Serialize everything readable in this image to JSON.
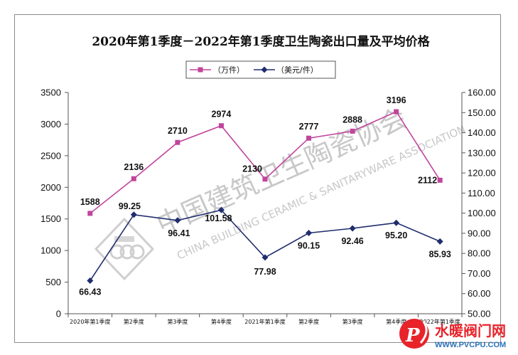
{
  "chart_data": {
    "type": "line",
    "title": "2020年第1季度－2022年第1季度卫生陶瓷出口量及平均价格",
    "categories": [
      "2020年第1季度",
      "第2季度",
      "第3季度",
      "第4季度",
      "2021年第1季度",
      "第2季度",
      "第3季度",
      "第4季度",
      "2022年第1季度"
    ],
    "series": [
      {
        "name": "（万件）",
        "axis": "left",
        "color": "#c1449c",
        "marker": "square",
        "values": [
          1588,
          2136,
          2710,
          2974,
          2130,
          2777,
          2888,
          3196,
          2112
        ],
        "labels": [
          "1588",
          "2136",
          "2710",
          "2974",
          "2130",
          "2777",
          "2888",
          "3196",
          "2112"
        ]
      },
      {
        "name": "（美元/件）",
        "axis": "right",
        "color": "#1f2d6e",
        "marker": "diamond",
        "values": [
          66.43,
          99.25,
          96.41,
          101.58,
          77.98,
          90.15,
          92.46,
          95.2,
          85.93
        ],
        "labels": [
          "66.43",
          "99.25",
          "96.41",
          "101.58",
          "77.98",
          "90.15",
          "92.46",
          "95.20",
          "85.93"
        ]
      }
    ],
    "y_left": {
      "min": 0,
      "max": 3500,
      "ticks": [
        "0",
        "500",
        "1000",
        "1500",
        "2000",
        "2500",
        "3000",
        "3500"
      ]
    },
    "y_right": {
      "min": 50,
      "max": 160,
      "ticks": [
        "50.00",
        "60.00",
        "70.00",
        "80.00",
        "90.00",
        "100.00",
        "110.00",
        "120.00",
        "130.00",
        "140.00",
        "150.00",
        "160.00"
      ]
    },
    "grid": false,
    "legend_position": "top-center"
  },
  "watermark": {
    "text_cn": "中国建筑卫生陶瓷协会",
    "text_en": "CHINA BUILDING CERAMIC & SANITARYWARE ASSOCIATION"
  },
  "site_logo": {
    "name": "水暖阀门网",
    "url": "WWW.PVCPU.COM"
  }
}
